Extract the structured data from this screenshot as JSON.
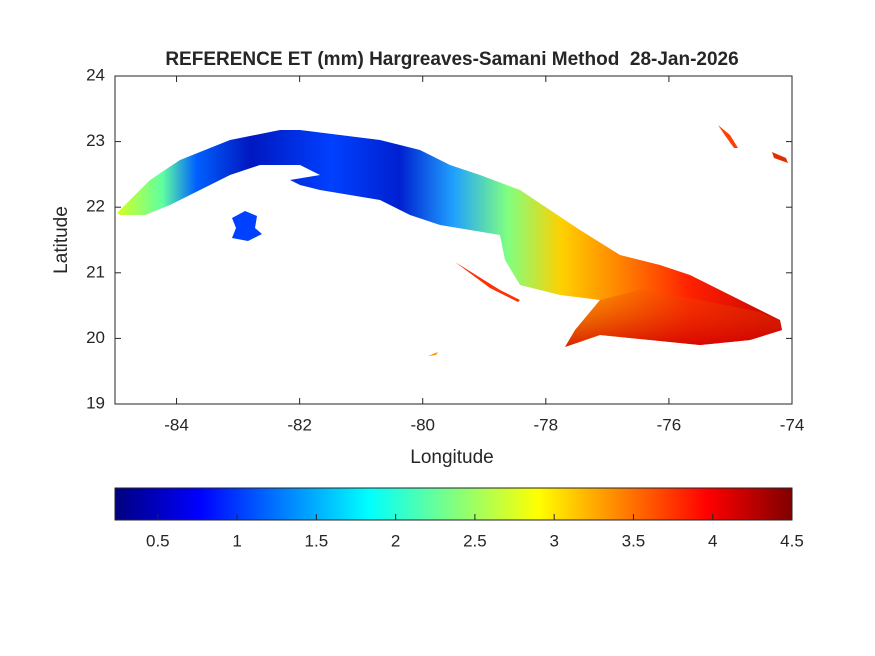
{
  "chart_data": {
    "type": "map",
    "title": "REFERENCE ET (mm) Hargreaves-Samani Method  28-Jan-2026",
    "x_label": "Longitude",
    "y_label": "Latitude",
    "xlim": [
      -85,
      -74
    ],
    "ylim": [
      19,
      24
    ],
    "xticks": [
      -84,
      -82,
      -80,
      -78,
      -76,
      -74
    ],
    "yticks": [
      19,
      20,
      21,
      22,
      23,
      24
    ],
    "colorbar": {
      "colormap": "jet",
      "clim": [
        0.23,
        4.5
      ],
      "ticks": [
        0.5,
        1,
        1.5,
        2,
        2.5,
        3,
        3.5,
        4,
        4.5
      ]
    }
  }
}
